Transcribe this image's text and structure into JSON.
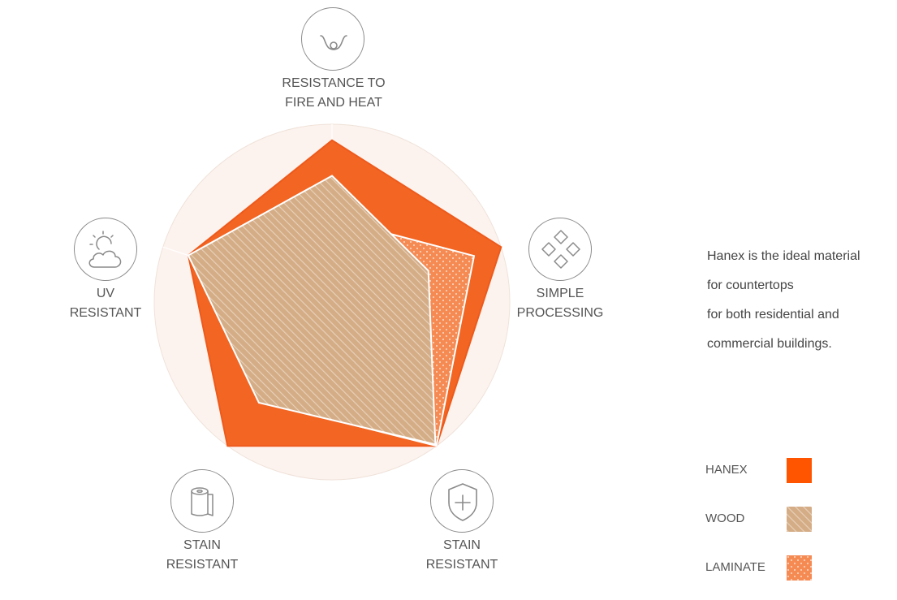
{
  "description": [
    "Hanex is the ideal material",
    "for countertops",
    "for both residential and",
    "commercial buildings."
  ],
  "chart_data": {
    "type": "radar",
    "axes": [
      {
        "label_lines": [
          "RESISTANCE TO",
          "FIRE AND HEAT"
        ],
        "icon": "fire-heat-icon"
      },
      {
        "label_lines": [
          "SIMPLE",
          "PROCESSING"
        ],
        "icon": "processing-diamonds-icon"
      },
      {
        "label_lines": [
          "STAIN",
          "RESISTANT"
        ],
        "icon": "shield-plus-icon"
      },
      {
        "label_lines": [
          "STAIN",
          "RESISTANT"
        ],
        "icon": "paper-roll-icon"
      },
      {
        "label_lines": [
          "UV",
          "RESISTANT"
        ],
        "icon": "sun-cloud-icon"
      }
    ],
    "rmax": 5,
    "series": [
      {
        "name": "HANEX",
        "values": [
          4.55,
          5.0,
          5.0,
          5.0,
          4.25
        ],
        "color": "#f26522",
        "pattern": "solid"
      },
      {
        "name": "LAMINATE",
        "values": [
          2.35,
          4.2,
          5.0,
          3.45,
          4.25
        ],
        "color": "#f58a53",
        "pattern": "dots"
      },
      {
        "name": "WOOD",
        "values": [
          3.55,
          2.85,
          4.95,
          3.5,
          4.25
        ],
        "color": "#d4ad87",
        "pattern": "stripes"
      }
    ],
    "legend_order": [
      "HANEX",
      "WOOD",
      "LAMINATE"
    ],
    "legend_position": "bottom-right"
  }
}
